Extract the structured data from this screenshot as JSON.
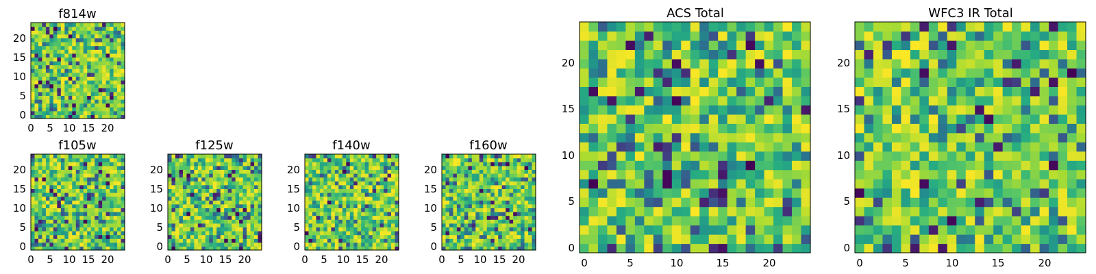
{
  "chart_data": [
    {
      "type": "heatmap",
      "title": "f814w",
      "size": 25,
      "xticks": [
        "0",
        "5",
        "10",
        "15",
        "20"
      ],
      "yticks": [
        "0",
        "5",
        "10",
        "15",
        "20"
      ],
      "seed": 11,
      "colormap": "viridis"
    },
    {
      "type": "heatmap",
      "title": "f105w",
      "size": 25,
      "xticks": [
        "0",
        "5",
        "10",
        "15",
        "20"
      ],
      "yticks": [
        "0",
        "5",
        "10",
        "15",
        "20"
      ],
      "seed": 23,
      "colormap": "viridis"
    },
    {
      "type": "heatmap",
      "title": "f125w",
      "size": 25,
      "xticks": [
        "0",
        "5",
        "10",
        "15",
        "20"
      ],
      "yticks": [
        "0",
        "5",
        "10",
        "15",
        "20"
      ],
      "seed": 37,
      "colormap": "viridis"
    },
    {
      "type": "heatmap",
      "title": "f140w",
      "size": 25,
      "xticks": [
        "0",
        "5",
        "10",
        "15",
        "20"
      ],
      "yticks": [
        "0",
        "5",
        "10",
        "15",
        "20"
      ],
      "seed": 41,
      "colormap": "viridis"
    },
    {
      "type": "heatmap",
      "title": "f160w",
      "size": 25,
      "xticks": [
        "0",
        "5",
        "10",
        "15",
        "20"
      ],
      "yticks": [
        "0",
        "5",
        "10",
        "15",
        "20"
      ],
      "seed": 53,
      "colormap": "viridis"
    },
    {
      "type": "heatmap",
      "title": "ACS Total",
      "size": 25,
      "xticks": [
        "0",
        "5",
        "10",
        "15",
        "20"
      ],
      "yticks": [
        "0",
        "5",
        "10",
        "15",
        "20"
      ],
      "seed": 67,
      "colormap": "viridis"
    },
    {
      "type": "heatmap",
      "title": "WFC3 IR Total",
      "size": 25,
      "xticks": [
        "0",
        "5",
        "10",
        "15",
        "20"
      ],
      "yticks": [
        "0",
        "5",
        "10",
        "15",
        "20"
      ],
      "seed": 79,
      "colormap": "viridis"
    }
  ]
}
